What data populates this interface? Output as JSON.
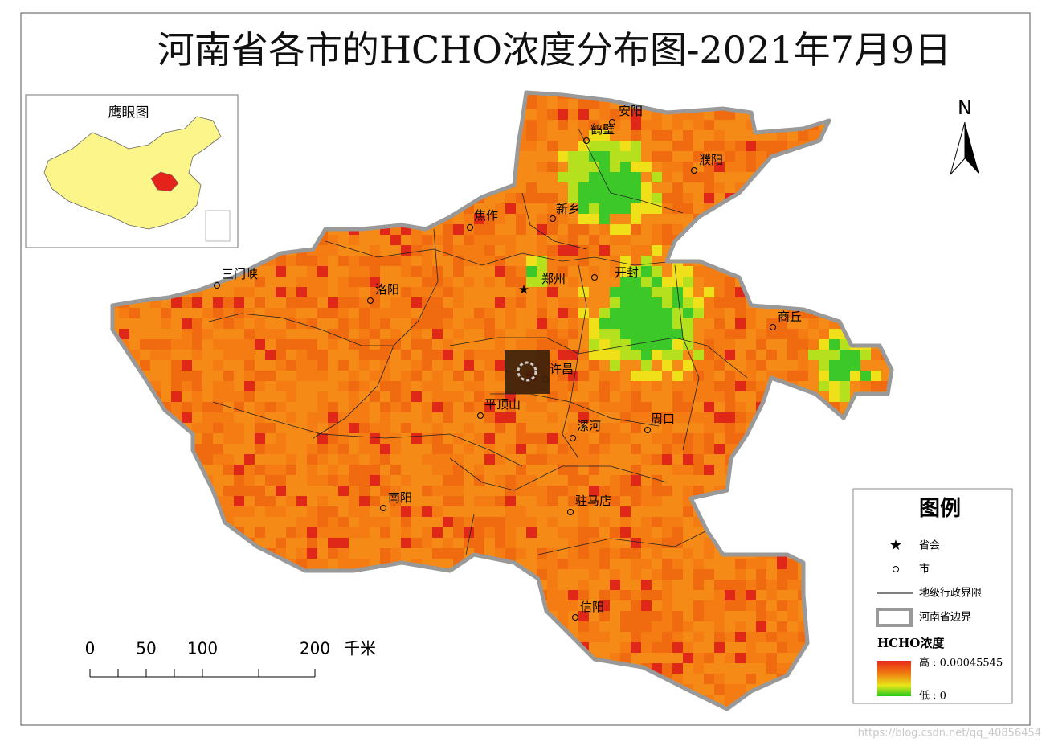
{
  "title": "河南省各市的HCHO浓度分布图-2021年7月9日",
  "inset": {
    "title": "鹰眼图"
  },
  "north": "N",
  "capital": {
    "name": "郑州"
  },
  "cities": [
    {
      "name": "安阳"
    },
    {
      "name": "鹤壁"
    },
    {
      "name": "濮阳"
    },
    {
      "name": "新乡"
    },
    {
      "name": "焦作"
    },
    {
      "name": "开封"
    },
    {
      "name": "三门峡"
    },
    {
      "name": "洛阳"
    },
    {
      "name": "商丘"
    },
    {
      "name": "许昌"
    },
    {
      "name": "平顶山"
    },
    {
      "name": "漯河"
    },
    {
      "name": "周口"
    },
    {
      "name": "南阳"
    },
    {
      "name": "驻马店"
    },
    {
      "name": "信阳"
    }
  ],
  "scale_bar": {
    "labels": [
      "0",
      "50",
      "100",
      "200"
    ],
    "unit": "千米"
  },
  "legend": {
    "title": "图例",
    "capital": "省会",
    "city": "市",
    "boundary": "地级行政界限",
    "province": "河南省边界",
    "heat_title": "HCHO浓度",
    "high": "高 : 0.00045545",
    "low": "低 : 0"
  },
  "watermark": "https://blog.csdn.net/qq_40856454"
}
